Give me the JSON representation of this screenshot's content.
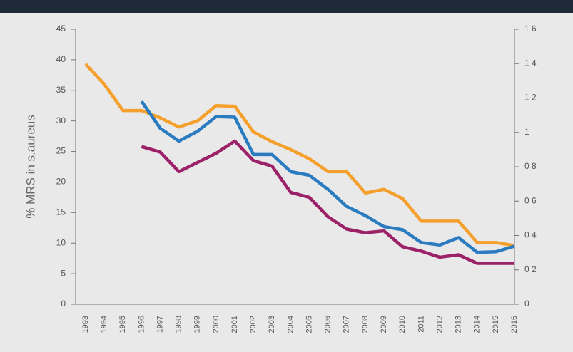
{
  "chart_data": {
    "type": "line",
    "y_label": "% MRS  in  s.aureus",
    "categories": [
      "1993",
      "1994",
      "1995",
      "1996",
      "1997",
      "1998",
      "1999",
      "2000",
      "2001",
      "2002",
      "2003",
      "2004",
      "2005",
      "2006",
      "2007",
      "2008",
      "2009",
      "2010",
      "2011",
      "2012",
      "2013",
      "2014",
      "2015",
      "2016"
    ],
    "series": [
      {
        "color": "#f5a02c",
        "values": [
          39.3,
          36.0,
          31.7,
          31.7,
          30.5,
          29.0,
          30.0,
          32.5,
          32.4,
          28.2,
          26.6,
          25.3,
          23.8,
          21.7,
          21.7,
          18.2,
          18.8,
          17.3,
          13.6,
          13.6,
          13.6,
          10.1,
          10.1,
          9.6
        ]
      },
      {
        "color": "#2b7bc0",
        "values": [
          null,
          null,
          null,
          33.2,
          28.8,
          26.7,
          28.3,
          30.7,
          30.6,
          24.5,
          24.5,
          21.7,
          21.1,
          18.8,
          16.0,
          14.5,
          12.7,
          12.2,
          10.1,
          9.7,
          10.9,
          8.5,
          8.6,
          9.5
        ]
      },
      {
        "color": "#9b2168",
        "values": [
          null,
          null,
          null,
          25.8,
          24.9,
          21.7,
          23.2,
          24.7,
          26.7,
          23.5,
          22.6,
          18.3,
          17.5,
          14.3,
          12.3,
          11.7,
          12.0,
          9.4,
          8.7,
          7.7,
          8.1,
          6.7,
          6.7,
          6.7
        ]
      }
    ],
    "ylim": [
      0,
      45
    ],
    "yticks": [
      0,
      5,
      10,
      15,
      20,
      25,
      30,
      35,
      40,
      45
    ],
    "y2lim": [
      0,
      1.6
    ],
    "y2ticks": [
      0,
      {
        "value": 0.2,
        "label": "0 2"
      },
      {
        "value": 0.4,
        "label": "0 4"
      },
      {
        "value": 0.6,
        "label": "0 6"
      },
      {
        "value": 0.8,
        "label": "0 8"
      },
      1,
      {
        "value": 1.2,
        "label": "1 2"
      },
      {
        "value": 1.4,
        "label": "1 4"
      },
      {
        "value": 1.6,
        "label": "1 6"
      }
    ]
  }
}
